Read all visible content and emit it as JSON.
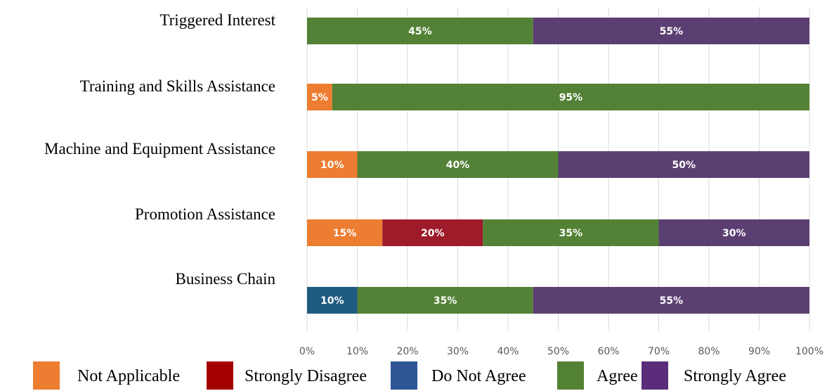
{
  "chart_data": {
    "type": "bar",
    "orientation": "horizontal",
    "stacked": true,
    "categories": [
      "Triggered Interest",
      "Training and Skills Assistance",
      "Machine and Equipment Assistance",
      "Promotion Assistance",
      "Business Chain"
    ],
    "series": [
      {
        "name": "Not Applicable",
        "color": "#ED7D31",
        "values": [
          0,
          5,
          10,
          15,
          0
        ]
      },
      {
        "name": "Strongly Disagree",
        "color": "#9E1B2A",
        "values": [
          0,
          0,
          0,
          20,
          0
        ]
      },
      {
        "name": "Do Not Agree",
        "color": "#1F5A82",
        "values": [
          0,
          0,
          0,
          0,
          10
        ]
      },
      {
        "name": "Agree",
        "color": "#538135",
        "values": [
          45,
          95,
          40,
          35,
          35
        ]
      },
      {
        "name": "Strongly Agree",
        "color": "#5B3F72",
        "values": [
          55,
          0,
          50,
          30,
          55
        ]
      }
    ],
    "x_ticks": [
      "0%",
      "10%",
      "20%",
      "30%",
      "40%",
      "50%",
      "60%",
      "70%",
      "80%",
      "90%",
      "100%"
    ],
    "xlim": [
      0,
      100
    ],
    "value_suffix": "%",
    "grid": "vertical",
    "legend_position": "bottom",
    "legend_swatch_colors": [
      "#ED7D31",
      "#A50000",
      "#2F5597",
      "#548235",
      "#5B2C7A"
    ],
    "title": "",
    "xlabel": "",
    "ylabel": ""
  }
}
